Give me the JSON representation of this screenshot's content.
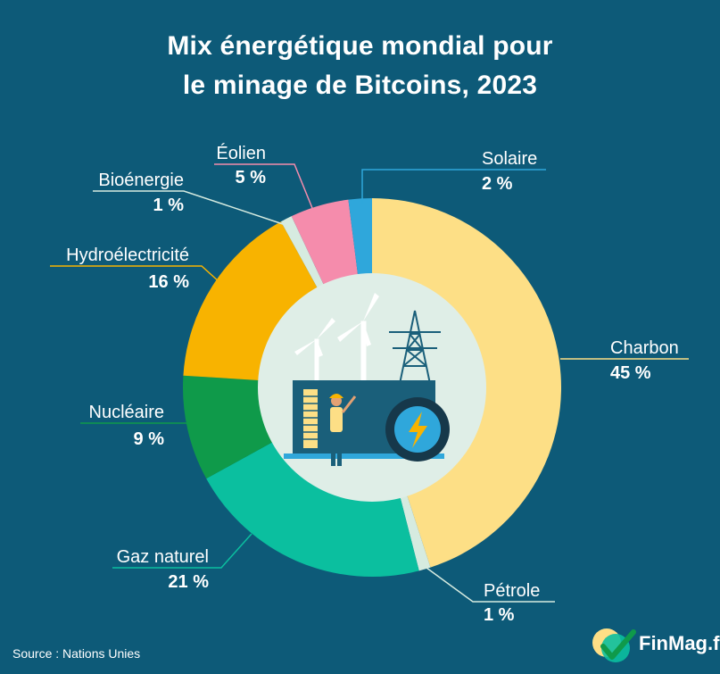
{
  "title": {
    "line1": "Mix énergétique mondial pour",
    "line2": "le minage de Bitcoins, 2023"
  },
  "source": "Source : Nations Unies",
  "brand": {
    "name": "FinMag.fr",
    "icon": "finmag-logo-icon"
  },
  "illustration": {
    "icons": [
      "wind-turbine-icon",
      "power-pylon-icon",
      "mining-machine-icon",
      "lightning-bolt-icon",
      "worker-icon"
    ]
  },
  "chart_data": {
    "type": "pie",
    "donut": true,
    "slices": [
      {
        "label": "Charbon",
        "value": 45,
        "value_label": "45 %",
        "color": "#fddf86"
      },
      {
        "label": "Pétrole",
        "value": 1,
        "value_label": "1 %",
        "color": "#d6ebe0"
      },
      {
        "label": "Gaz naturel",
        "value": 21,
        "value_label": "21 %",
        "color": "#0bbf9f"
      },
      {
        "label": "Nucléaire",
        "value": 9,
        "value_label": "9 %",
        "color": "#0f9a4a"
      },
      {
        "label": "Hydroélectricité",
        "value": 16,
        "value_label": "16 %",
        "color": "#f8b300"
      },
      {
        "label": "Bioénergie",
        "value": 1,
        "value_label": "1 %",
        "color": "#d6ebe0"
      },
      {
        "label": "Éolien",
        "value": 5,
        "value_label": "5 %",
        "color": "#f58cac"
      },
      {
        "label": "Solaire",
        "value": 2,
        "value_label": "2 %",
        "color": "#2fa7db"
      }
    ],
    "start": "top",
    "direction": "clockwise"
  }
}
